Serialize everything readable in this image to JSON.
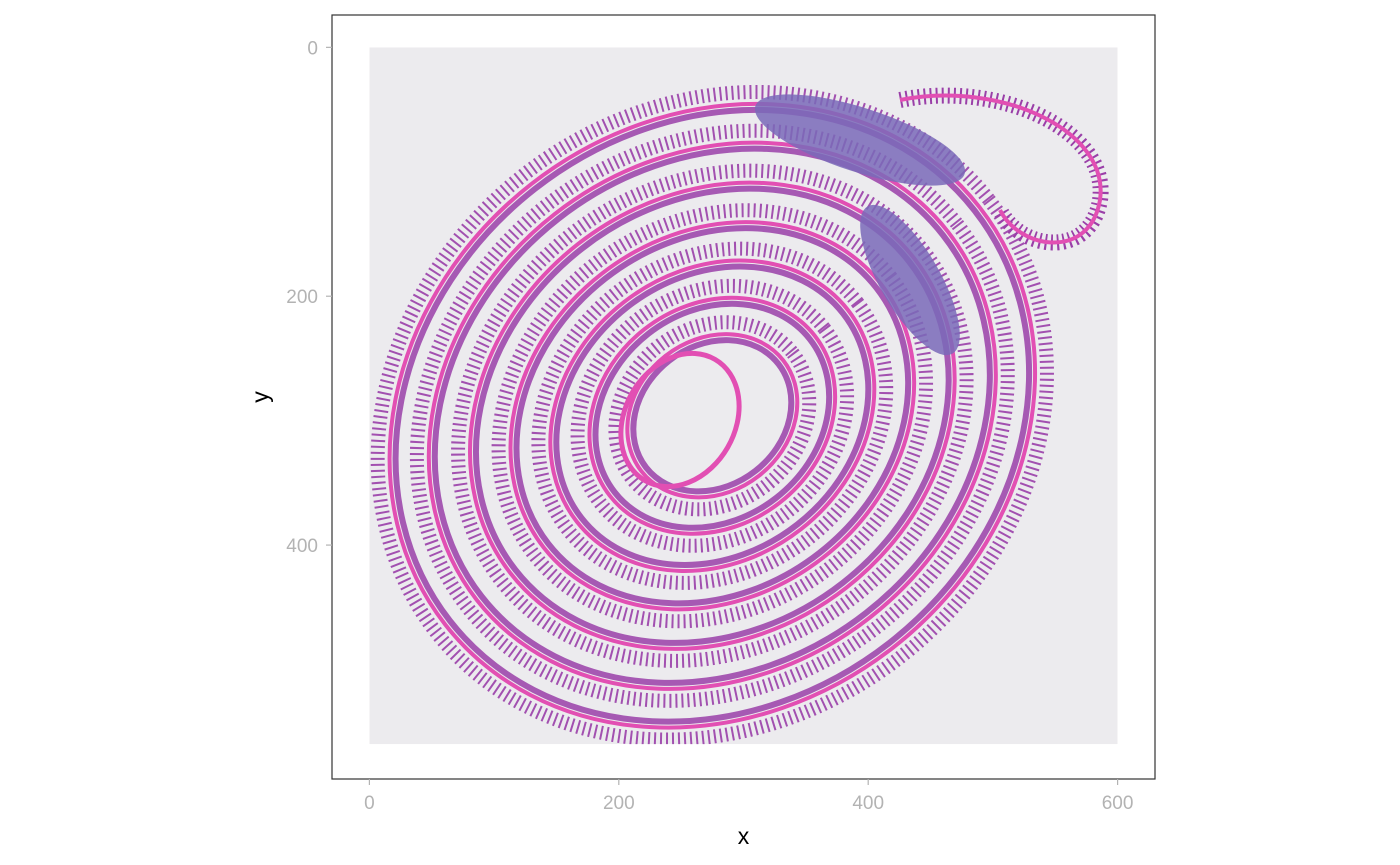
{
  "chart_data": {
    "type": "image",
    "xlabel": "x",
    "ylabel": "y",
    "xlim": [
      -30,
      630
    ],
    "ylim": [
      -26,
      588
    ],
    "y_reversed": true,
    "grid": false,
    "x_ticks": [
      {
        "value": 0,
        "label": "0"
      },
      {
        "value": 200,
        "label": "200"
      },
      {
        "value": 400,
        "label": "400"
      },
      {
        "value": 600,
        "label": "600"
      }
    ],
    "y_ticks": [
      {
        "value": 0,
        "label": "0"
      },
      {
        "value": 200,
        "label": "200"
      },
      {
        "value": 400,
        "label": "400"
      }
    ],
    "image_extent": {
      "x": [
        0,
        600
      ],
      "y": [
        0,
        560
      ]
    },
    "image_subject": "H&E stained tissue section (Swiss-roll intestine)",
    "colors": {
      "panel_border": "#333333",
      "tick": "#b3b3b3",
      "slide_background": "#ecebee",
      "stain_purple": "#9a3fa8",
      "stain_pink": "#e24fb3",
      "stain_lymphoid": "#7a6ab8"
    }
  }
}
